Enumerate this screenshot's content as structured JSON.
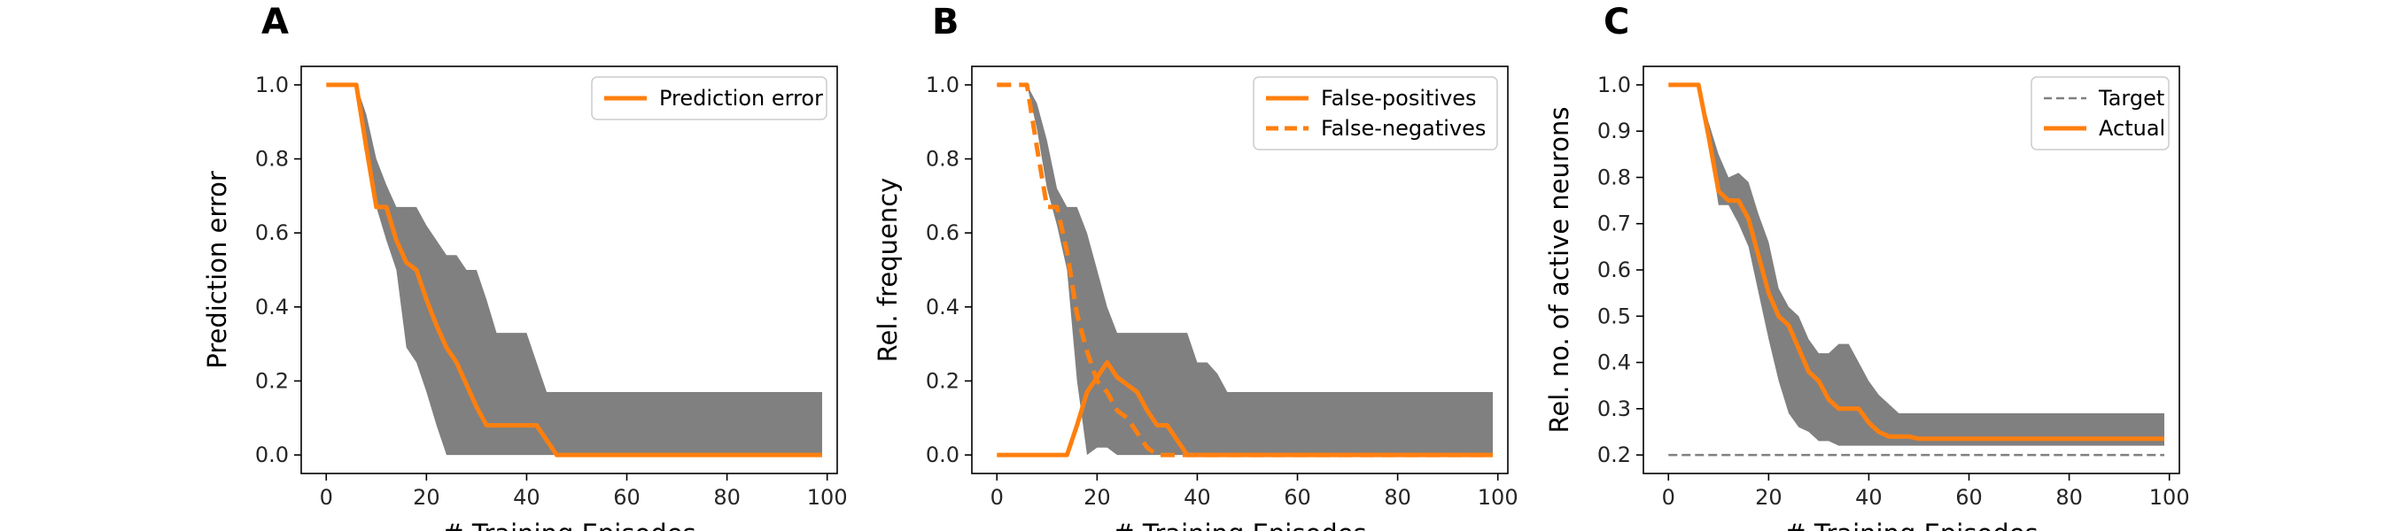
{
  "colors": {
    "line": "#ff7f0e",
    "band": "#808080",
    "target": "#808080",
    "axis": "#000000"
  },
  "chart_data": [
    {
      "type": "line",
      "panel": "A",
      "xlabel": "# Training Episodes",
      "ylabel": "Prediction error",
      "xlim": [
        -5,
        102
      ],
      "ylim": [
        -0.05,
        1.05
      ],
      "xticks": [
        0,
        20,
        40,
        60,
        80,
        100
      ],
      "yticks": [
        0.0,
        0.2,
        0.4,
        0.6,
        0.8,
        1.0
      ],
      "ytick_labels": [
        "0.0",
        "0.2",
        "0.4",
        "0.6",
        "0.8",
        "1.0"
      ],
      "legend": {
        "position": "top-right",
        "entries": [
          {
            "label": "Prediction error",
            "style": "solid"
          }
        ]
      },
      "band": {
        "x": [
          0,
          6,
          8,
          10,
          12,
          14,
          16,
          18,
          20,
          22,
          24,
          26,
          28,
          30,
          32,
          34,
          36,
          38,
          40,
          42,
          44,
          46,
          48,
          60,
          80,
          99
        ],
        "upper": [
          1.0,
          1.0,
          0.92,
          0.8,
          0.73,
          0.67,
          0.67,
          0.67,
          0.62,
          0.58,
          0.54,
          0.54,
          0.5,
          0.5,
          0.42,
          0.33,
          0.33,
          0.33,
          0.33,
          0.25,
          0.17,
          0.17,
          0.17,
          0.17,
          0.17,
          0.17
        ],
        "lower": [
          1.0,
          1.0,
          0.8,
          0.67,
          0.58,
          0.5,
          0.29,
          0.25,
          0.17,
          0.08,
          0.0,
          0.0,
          0.0,
          0.0,
          0.0,
          0.0,
          0.0,
          0.0,
          0.0,
          0.0,
          0.0,
          0.0,
          0.0,
          0.0,
          0.0,
          0.0
        ]
      },
      "series": [
        {
          "name": "Prediction error",
          "style": "solid",
          "x": [
            0,
            6,
            8,
            10,
            12,
            14,
            16,
            18,
            20,
            22,
            24,
            26,
            28,
            30,
            32,
            34,
            36,
            38,
            40,
            42,
            44,
            46,
            48,
            60,
            80,
            99
          ],
          "y": [
            1.0,
            1.0,
            0.83,
            0.67,
            0.67,
            0.58,
            0.52,
            0.5,
            0.42,
            0.35,
            0.29,
            0.25,
            0.19,
            0.13,
            0.08,
            0.08,
            0.08,
            0.08,
            0.08,
            0.08,
            0.04,
            0.0,
            0.0,
            0.0,
            0.0,
            0.0
          ]
        }
      ]
    },
    {
      "type": "line",
      "panel": "B",
      "xlabel": "# Training Episodes",
      "ylabel": "Rel. frequency",
      "xlim": [
        -5,
        102
      ],
      "ylim": [
        -0.05,
        1.05
      ],
      "xticks": [
        0,
        20,
        40,
        60,
        80,
        100
      ],
      "yticks": [
        0.0,
        0.2,
        0.4,
        0.6,
        0.8,
        1.0
      ],
      "ytick_labels": [
        "0.0",
        "0.2",
        "0.4",
        "0.6",
        "0.8",
        "1.0"
      ],
      "legend": {
        "position": "top-right",
        "entries": [
          {
            "label": "False-positives",
            "style": "solid"
          },
          {
            "label": "False-negatives",
            "style": "dashed"
          }
        ]
      },
      "band": {
        "x": [
          0,
          6,
          8,
          10,
          12,
          14,
          16,
          18,
          20,
          22,
          24,
          26,
          28,
          30,
          32,
          34,
          36,
          38,
          40,
          42,
          44,
          46,
          48,
          60,
          80,
          99
        ],
        "upper": [
          1.0,
          1.0,
          0.95,
          0.85,
          0.72,
          0.67,
          0.67,
          0.6,
          0.5,
          0.4,
          0.33,
          0.33,
          0.33,
          0.33,
          0.33,
          0.33,
          0.33,
          0.33,
          0.25,
          0.25,
          0.22,
          0.17,
          0.17,
          0.17,
          0.17,
          0.17
        ],
        "lower": [
          1.0,
          1.0,
          0.88,
          0.72,
          0.62,
          0.5,
          0.2,
          0.0,
          0.02,
          0.02,
          0.0,
          0.0,
          0.0,
          0.0,
          0.0,
          0.0,
          0.0,
          0.0,
          0.0,
          0.0,
          0.0,
          0.0,
          0.0,
          0.0,
          0.0,
          0.0
        ]
      },
      "series": [
        {
          "name": "False-positives",
          "style": "solid",
          "x": [
            0,
            10,
            14,
            16,
            18,
            20,
            22,
            24,
            26,
            28,
            30,
            32,
            34,
            36,
            38,
            40,
            60,
            80,
            99
          ],
          "y": [
            0.0,
            0.0,
            0.0,
            0.08,
            0.17,
            0.21,
            0.25,
            0.21,
            0.19,
            0.17,
            0.12,
            0.08,
            0.08,
            0.04,
            0.0,
            0.0,
            0.0,
            0.0,
            0.0
          ]
        },
        {
          "name": "False-negatives",
          "style": "dashed",
          "x": [
            0,
            6,
            8,
            10,
            12,
            14,
            16,
            18,
            20,
            22,
            24,
            26,
            28,
            30,
            32,
            34,
            60,
            80,
            99
          ],
          "y": [
            1.0,
            1.0,
            0.83,
            0.67,
            0.67,
            0.55,
            0.38,
            0.28,
            0.2,
            0.17,
            0.12,
            0.1,
            0.06,
            0.02,
            0.0,
            0.0,
            0.0,
            0.0,
            0.0
          ]
        }
      ]
    },
    {
      "type": "line",
      "panel": "C",
      "xlabel": "# Training Episodes",
      "ylabel": "Rel. no. of active neurons",
      "xlim": [
        -5,
        102
      ],
      "ylim": [
        0.16,
        1.04
      ],
      "xticks": [
        0,
        20,
        40,
        60,
        80,
        100
      ],
      "yticks": [
        0.2,
        0.3,
        0.4,
        0.5,
        0.6,
        0.7,
        0.8,
        0.9,
        1.0
      ],
      "ytick_labels": [
        "0.2",
        "0.3",
        "0.4",
        "0.5",
        "0.6",
        "0.7",
        "0.8",
        "0.9",
        "1.0"
      ],
      "legend": {
        "position": "top-right",
        "entries": [
          {
            "label": "Target",
            "style": "dashed-gray"
          },
          {
            "label": "Actual",
            "style": "solid"
          }
        ]
      },
      "target": {
        "x": [
          0,
          99
        ],
        "y": [
          0.2,
          0.2
        ]
      },
      "band": {
        "x": [
          0,
          6,
          8,
          10,
          12,
          14,
          16,
          18,
          20,
          22,
          24,
          26,
          28,
          30,
          32,
          34,
          36,
          38,
          40,
          42,
          44,
          46,
          48,
          52,
          60,
          80,
          99
        ],
        "upper": [
          1.0,
          1.0,
          0.92,
          0.85,
          0.8,
          0.81,
          0.79,
          0.72,
          0.66,
          0.56,
          0.52,
          0.5,
          0.45,
          0.42,
          0.42,
          0.44,
          0.44,
          0.4,
          0.36,
          0.33,
          0.31,
          0.29,
          0.29,
          0.29,
          0.29,
          0.29,
          0.29
        ],
        "lower": [
          1.0,
          1.0,
          0.88,
          0.74,
          0.74,
          0.7,
          0.65,
          0.55,
          0.45,
          0.36,
          0.29,
          0.26,
          0.25,
          0.23,
          0.23,
          0.22,
          0.22,
          0.22,
          0.22,
          0.22,
          0.22,
          0.22,
          0.22,
          0.22,
          0.22,
          0.22,
          0.22
        ]
      },
      "series": [
        {
          "name": "Actual",
          "style": "solid",
          "x": [
            0,
            6,
            8,
            10,
            12,
            14,
            16,
            18,
            20,
            22,
            24,
            26,
            28,
            30,
            32,
            34,
            36,
            38,
            40,
            42,
            44,
            46,
            48,
            50,
            60,
            80,
            99
          ],
          "y": [
            1.0,
            1.0,
            0.89,
            0.77,
            0.75,
            0.75,
            0.71,
            0.63,
            0.55,
            0.5,
            0.48,
            0.43,
            0.38,
            0.36,
            0.32,
            0.3,
            0.3,
            0.3,
            0.27,
            0.25,
            0.24,
            0.24,
            0.24,
            0.235,
            0.235,
            0.235,
            0.235
          ]
        }
      ]
    }
  ]
}
